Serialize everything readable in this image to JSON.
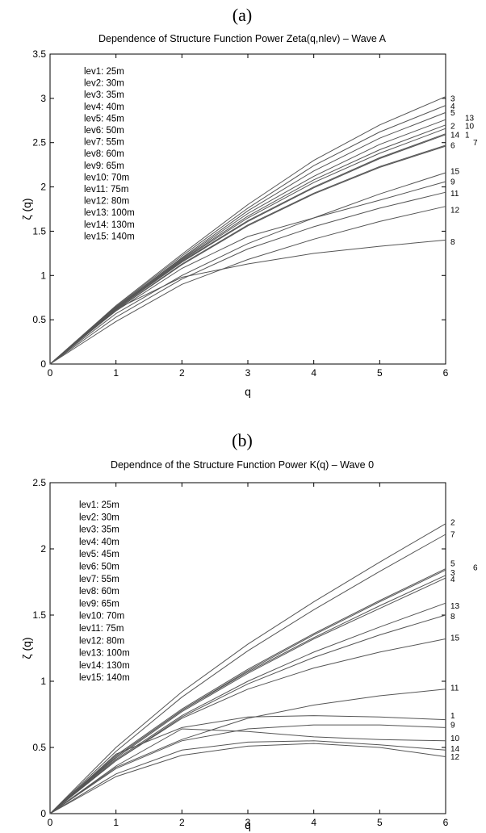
{
  "chart_data": [
    {
      "type": "line",
      "panel_label": "(a)",
      "title": "Dependence of Structure Function Power Zeta(q,nlev) – Wave A",
      "xlabel": "q",
      "ylabel": "ζ (q)",
      "xlim": [
        0,
        6
      ],
      "ylim": [
        0,
        3.5
      ],
      "xticks": [
        "0",
        "1",
        "2",
        "3",
        "4",
        "5",
        "6"
      ],
      "yticks": [
        "0",
        "0.5",
        "1",
        "1.5",
        "2",
        "2.5",
        "3",
        "3.5"
      ],
      "legend_placement": "top-left",
      "legend": [
        "lev1: 25m",
        "lev2: 30m",
        "lev3: 35m",
        "lev4: 40m",
        "lev5: 45m",
        "lev6: 50m",
        "lev7: 55m",
        "lev8: 60m",
        "lev9: 65m",
        "lev10: 70m",
        "lev11: 75m",
        "lev12: 80m",
        "lev13: 100m",
        "lev14: 130m",
        "lev15: 140m"
      ],
      "x": [
        0,
        1,
        2,
        3,
        4,
        5,
        6
      ],
      "series": [
        {
          "name": "3",
          "values": [
            0,
            0.66,
            1.24,
            1.8,
            2.3,
            2.7,
            3.02
          ]
        },
        {
          "name": "4",
          "values": [
            0,
            0.65,
            1.22,
            1.76,
            2.24,
            2.62,
            2.92
          ]
        },
        {
          "name": "5",
          "values": [
            0,
            0.64,
            1.2,
            1.73,
            2.18,
            2.55,
            2.84
          ]
        },
        {
          "name": "13",
          "values": [
            0,
            0.64,
            1.19,
            1.7,
            2.12,
            2.48,
            2.76
          ]
        },
        {
          "name": "2",
          "values": [
            0,
            0.63,
            1.18,
            1.67,
            2.08,
            2.42,
            2.7
          ]
        },
        {
          "name": "10",
          "values": [
            0,
            0.63,
            1.17,
            1.65,
            2.05,
            2.38,
            2.66
          ]
        },
        {
          "name": "14",
          "values": [
            0,
            0.62,
            1.16,
            1.62,
            2.0,
            2.33,
            2.6
          ]
        },
        {
          "name": "1",
          "values": [
            0,
            0.62,
            1.15,
            1.61,
            1.99,
            2.32,
            2.59
          ]
        },
        {
          "name": "6",
          "values": [
            0,
            0.61,
            1.13,
            1.57,
            1.93,
            2.23,
            2.47
          ]
        },
        {
          "name": "7",
          "values": [
            0,
            0.61,
            1.12,
            1.56,
            1.92,
            2.22,
            2.46
          ]
        },
        {
          "name": "15",
          "values": [
            0,
            0.57,
            1.0,
            1.36,
            1.65,
            1.92,
            2.16
          ]
        },
        {
          "name": "9",
          "values": [
            0,
            0.6,
            1.08,
            1.44,
            1.65,
            1.85,
            2.06
          ]
        },
        {
          "name": "11",
          "values": [
            0,
            0.53,
            0.96,
            1.3,
            1.55,
            1.76,
            1.94
          ]
        },
        {
          "name": "12",
          "values": [
            0,
            0.48,
            0.9,
            1.18,
            1.41,
            1.61,
            1.78
          ]
        },
        {
          "name": "8",
          "values": [
            0,
            0.62,
            0.98,
            1.13,
            1.25,
            1.33,
            1.4
          ]
        }
      ],
      "end_labels": [
        {
          "text": "3",
          "y": 3.0,
          "col": 0
        },
        {
          "text": "4",
          "y": 2.91,
          "col": 0
        },
        {
          "text": "5",
          "y": 2.84,
          "col": 0
        },
        {
          "text": "13",
          "y": 2.78,
          "col": 1
        },
        {
          "text": "2",
          "y": 2.69,
          "col": 0
        },
        {
          "text": "10",
          "y": 2.69,
          "col": 1
        },
        {
          "text": "14",
          "y": 2.59,
          "col": 0
        },
        {
          "text": "1",
          "y": 2.59,
          "col": 1
        },
        {
          "text": "6",
          "y": 2.47,
          "col": 0
        },
        {
          "text": "7",
          "y": 2.5,
          "col": 2
        },
        {
          "text": "15",
          "y": 2.18,
          "col": 0
        },
        {
          "text": "9",
          "y": 2.06,
          "col": 0
        },
        {
          "text": "11",
          "y": 1.93,
          "col": 0
        },
        {
          "text": "12",
          "y": 1.74,
          "col": 0
        },
        {
          "text": "8",
          "y": 1.38,
          "col": 0
        }
      ]
    },
    {
      "type": "line",
      "panel_label": "(b)",
      "title": "Dependnce of the Structure Function Power K(q) – Wave 0",
      "xlabel": "q",
      "ylabel": "ζ (q)",
      "xlim": [
        0,
        6
      ],
      "ylim": [
        0,
        2.5
      ],
      "xticks": [
        "0",
        "1",
        "2",
        "3",
        "4",
        "5",
        "6"
      ],
      "yticks": [
        "0",
        "0.5",
        "1",
        "1.5",
        "2",
        "2.5"
      ],
      "legend_placement": "top-left",
      "legend": [
        "lev1: 25m",
        "lev2: 30m",
        "lev3: 35m",
        "lev4: 40m",
        "lev5: 45m",
        "lev6: 50m",
        "lev7: 55m",
        "lev8: 60m",
        "lev9: 65m",
        "lev10: 70m",
        "lev11: 75m",
        "lev12: 80m",
        "lev13: 100m",
        "lev14: 130m",
        "lev15: 140m"
      ],
      "x": [
        0,
        1,
        2,
        3,
        4,
        5,
        6
      ],
      "series": [
        {
          "name": "2",
          "values": [
            0,
            0.5,
            0.92,
            1.28,
            1.6,
            1.9,
            2.19
          ]
        },
        {
          "name": "7",
          "values": [
            0,
            0.47,
            0.88,
            1.23,
            1.54,
            1.83,
            2.11
          ]
        },
        {
          "name": "5",
          "values": [
            0,
            0.44,
            0.79,
            1.09,
            1.36,
            1.61,
            1.85
          ]
        },
        {
          "name": "6",
          "values": [
            0,
            0.43,
            0.78,
            1.08,
            1.35,
            1.6,
            1.84
          ]
        },
        {
          "name": "3",
          "values": [
            0,
            0.43,
            0.78,
            1.07,
            1.33,
            1.57,
            1.8
          ]
        },
        {
          "name": "4",
          "values": [
            0,
            0.42,
            0.77,
            1.06,
            1.32,
            1.55,
            1.78
          ]
        },
        {
          "name": "13",
          "values": [
            0,
            0.41,
            0.74,
            1.0,
            1.22,
            1.41,
            1.59
          ]
        },
        {
          "name": "8",
          "values": [
            0,
            0.4,
            0.73,
            0.98,
            1.18,
            1.35,
            1.5
          ]
        },
        {
          "name": "15",
          "values": [
            0,
            0.4,
            0.72,
            0.94,
            1.1,
            1.22,
            1.32
          ]
        },
        {
          "name": "11",
          "values": [
            0,
            0.35,
            0.56,
            0.72,
            0.82,
            0.89,
            0.94
          ]
        },
        {
          "name": "1",
          "values": [
            0,
            0.45,
            0.65,
            0.73,
            0.74,
            0.73,
            0.71
          ]
        },
        {
          "name": "9",
          "values": [
            0,
            0.34,
            0.55,
            0.64,
            0.67,
            0.67,
            0.65
          ]
        },
        {
          "name": "10",
          "values": [
            0,
            0.36,
            0.64,
            0.62,
            0.58,
            0.56,
            0.55
          ]
        },
        {
          "name": "14",
          "values": [
            0,
            0.3,
            0.48,
            0.54,
            0.55,
            0.52,
            0.48
          ]
        },
        {
          "name": "12",
          "values": [
            0,
            0.28,
            0.44,
            0.51,
            0.53,
            0.5,
            0.43
          ]
        }
      ],
      "end_labels": [
        {
          "text": "2",
          "y": 2.2,
          "col": 0
        },
        {
          "text": "7",
          "y": 2.11,
          "col": 0
        },
        {
          "text": "5",
          "y": 1.89,
          "col": 0
        },
        {
          "text": "6",
          "y": 1.86,
          "col": 2
        },
        {
          "text": "3",
          "y": 1.82,
          "col": 0
        },
        {
          "text": "4",
          "y": 1.77,
          "col": 0
        },
        {
          "text": "13",
          "y": 1.57,
          "col": 0
        },
        {
          "text": "8",
          "y": 1.49,
          "col": 0
        },
        {
          "text": "15",
          "y": 1.33,
          "col": 0
        },
        {
          "text": "11",
          "y": 0.95,
          "col": 0
        },
        {
          "text": "1",
          "y": 0.74,
          "col": 0
        },
        {
          "text": "9",
          "y": 0.67,
          "col": 0
        },
        {
          "text": "10",
          "y": 0.57,
          "col": 0
        },
        {
          "text": "14",
          "y": 0.49,
          "col": 0
        },
        {
          "text": "12",
          "y": 0.43,
          "col": 0
        }
      ]
    }
  ]
}
